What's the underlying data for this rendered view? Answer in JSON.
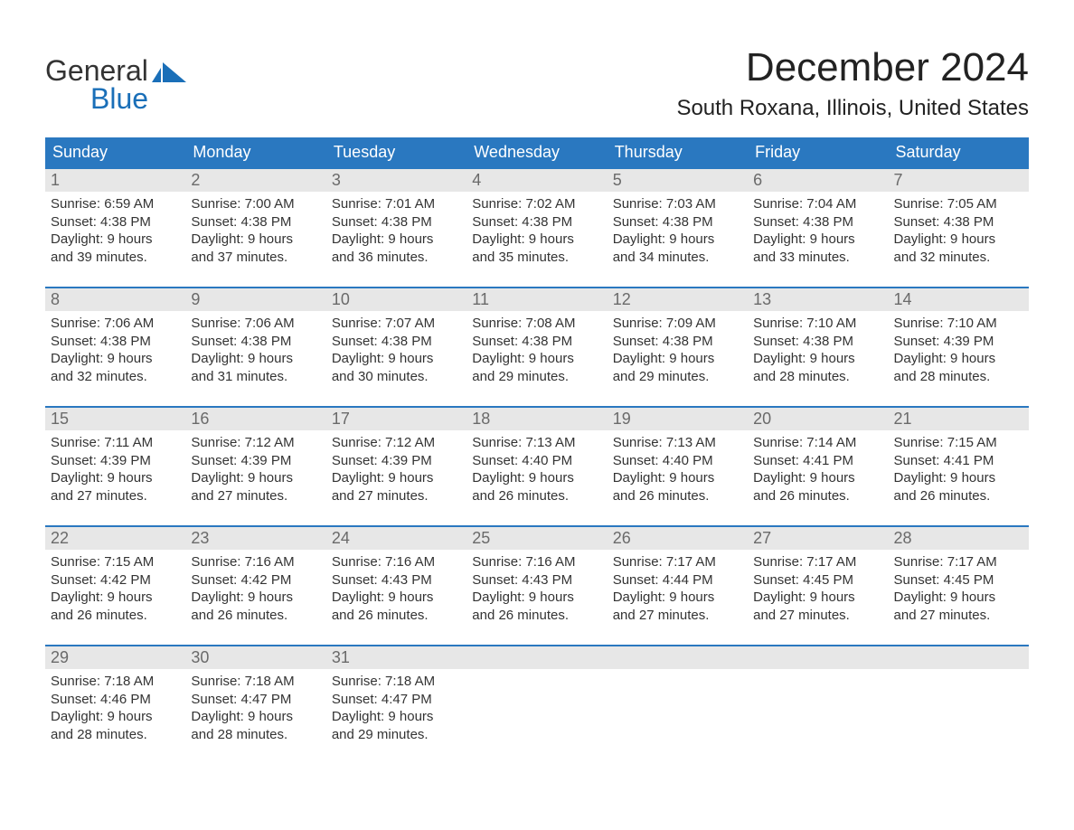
{
  "brand": {
    "word1": "General",
    "word2": "Blue",
    "accent_color": "#1a6fb8"
  },
  "title": "December 2024",
  "location": "South Roxana, Illinois, United States",
  "colors": {
    "header_bg": "#2a78c0",
    "header_text": "#ffffff",
    "daynum_bg": "#e7e7e7",
    "daynum_text": "#6a6a6a",
    "week_border": "#2a78c0",
    "body_text": "#333333",
    "background": "#ffffff"
  },
  "typography": {
    "title_fontsize": 44,
    "location_fontsize": 24,
    "dow_fontsize": 18,
    "daynum_fontsize": 18,
    "body_fontsize": 15
  },
  "days_of_week": [
    "Sunday",
    "Monday",
    "Tuesday",
    "Wednesday",
    "Thursday",
    "Friday",
    "Saturday"
  ],
  "weeks": [
    [
      {
        "n": "1",
        "sunrise": "Sunrise: 6:59 AM",
        "sunset": "Sunset: 4:38 PM",
        "d1": "Daylight: 9 hours",
        "d2": "and 39 minutes."
      },
      {
        "n": "2",
        "sunrise": "Sunrise: 7:00 AM",
        "sunset": "Sunset: 4:38 PM",
        "d1": "Daylight: 9 hours",
        "d2": "and 37 minutes."
      },
      {
        "n": "3",
        "sunrise": "Sunrise: 7:01 AM",
        "sunset": "Sunset: 4:38 PM",
        "d1": "Daylight: 9 hours",
        "d2": "and 36 minutes."
      },
      {
        "n": "4",
        "sunrise": "Sunrise: 7:02 AM",
        "sunset": "Sunset: 4:38 PM",
        "d1": "Daylight: 9 hours",
        "d2": "and 35 minutes."
      },
      {
        "n": "5",
        "sunrise": "Sunrise: 7:03 AM",
        "sunset": "Sunset: 4:38 PM",
        "d1": "Daylight: 9 hours",
        "d2": "and 34 minutes."
      },
      {
        "n": "6",
        "sunrise": "Sunrise: 7:04 AM",
        "sunset": "Sunset: 4:38 PM",
        "d1": "Daylight: 9 hours",
        "d2": "and 33 minutes."
      },
      {
        "n": "7",
        "sunrise": "Sunrise: 7:05 AM",
        "sunset": "Sunset: 4:38 PM",
        "d1": "Daylight: 9 hours",
        "d2": "and 32 minutes."
      }
    ],
    [
      {
        "n": "8",
        "sunrise": "Sunrise: 7:06 AM",
        "sunset": "Sunset: 4:38 PM",
        "d1": "Daylight: 9 hours",
        "d2": "and 32 minutes."
      },
      {
        "n": "9",
        "sunrise": "Sunrise: 7:06 AM",
        "sunset": "Sunset: 4:38 PM",
        "d1": "Daylight: 9 hours",
        "d2": "and 31 minutes."
      },
      {
        "n": "10",
        "sunrise": "Sunrise: 7:07 AM",
        "sunset": "Sunset: 4:38 PM",
        "d1": "Daylight: 9 hours",
        "d2": "and 30 minutes."
      },
      {
        "n": "11",
        "sunrise": "Sunrise: 7:08 AM",
        "sunset": "Sunset: 4:38 PM",
        "d1": "Daylight: 9 hours",
        "d2": "and 29 minutes."
      },
      {
        "n": "12",
        "sunrise": "Sunrise: 7:09 AM",
        "sunset": "Sunset: 4:38 PM",
        "d1": "Daylight: 9 hours",
        "d2": "and 29 minutes."
      },
      {
        "n": "13",
        "sunrise": "Sunrise: 7:10 AM",
        "sunset": "Sunset: 4:38 PM",
        "d1": "Daylight: 9 hours",
        "d2": "and 28 minutes."
      },
      {
        "n": "14",
        "sunrise": "Sunrise: 7:10 AM",
        "sunset": "Sunset: 4:39 PM",
        "d1": "Daylight: 9 hours",
        "d2": "and 28 minutes."
      }
    ],
    [
      {
        "n": "15",
        "sunrise": "Sunrise: 7:11 AM",
        "sunset": "Sunset: 4:39 PM",
        "d1": "Daylight: 9 hours",
        "d2": "and 27 minutes."
      },
      {
        "n": "16",
        "sunrise": "Sunrise: 7:12 AM",
        "sunset": "Sunset: 4:39 PM",
        "d1": "Daylight: 9 hours",
        "d2": "and 27 minutes."
      },
      {
        "n": "17",
        "sunrise": "Sunrise: 7:12 AM",
        "sunset": "Sunset: 4:39 PM",
        "d1": "Daylight: 9 hours",
        "d2": "and 27 minutes."
      },
      {
        "n": "18",
        "sunrise": "Sunrise: 7:13 AM",
        "sunset": "Sunset: 4:40 PM",
        "d1": "Daylight: 9 hours",
        "d2": "and 26 minutes."
      },
      {
        "n": "19",
        "sunrise": "Sunrise: 7:13 AM",
        "sunset": "Sunset: 4:40 PM",
        "d1": "Daylight: 9 hours",
        "d2": "and 26 minutes."
      },
      {
        "n": "20",
        "sunrise": "Sunrise: 7:14 AM",
        "sunset": "Sunset: 4:41 PM",
        "d1": "Daylight: 9 hours",
        "d2": "and 26 minutes."
      },
      {
        "n": "21",
        "sunrise": "Sunrise: 7:15 AM",
        "sunset": "Sunset: 4:41 PM",
        "d1": "Daylight: 9 hours",
        "d2": "and 26 minutes."
      }
    ],
    [
      {
        "n": "22",
        "sunrise": "Sunrise: 7:15 AM",
        "sunset": "Sunset: 4:42 PM",
        "d1": "Daylight: 9 hours",
        "d2": "and 26 minutes."
      },
      {
        "n": "23",
        "sunrise": "Sunrise: 7:16 AM",
        "sunset": "Sunset: 4:42 PM",
        "d1": "Daylight: 9 hours",
        "d2": "and 26 minutes."
      },
      {
        "n": "24",
        "sunrise": "Sunrise: 7:16 AM",
        "sunset": "Sunset: 4:43 PM",
        "d1": "Daylight: 9 hours",
        "d2": "and 26 minutes."
      },
      {
        "n": "25",
        "sunrise": "Sunrise: 7:16 AM",
        "sunset": "Sunset: 4:43 PM",
        "d1": "Daylight: 9 hours",
        "d2": "and 26 minutes."
      },
      {
        "n": "26",
        "sunrise": "Sunrise: 7:17 AM",
        "sunset": "Sunset: 4:44 PM",
        "d1": "Daylight: 9 hours",
        "d2": "and 27 minutes."
      },
      {
        "n": "27",
        "sunrise": "Sunrise: 7:17 AM",
        "sunset": "Sunset: 4:45 PM",
        "d1": "Daylight: 9 hours",
        "d2": "and 27 minutes."
      },
      {
        "n": "28",
        "sunrise": "Sunrise: 7:17 AM",
        "sunset": "Sunset: 4:45 PM",
        "d1": "Daylight: 9 hours",
        "d2": "and 27 minutes."
      }
    ],
    [
      {
        "n": "29",
        "sunrise": "Sunrise: 7:18 AM",
        "sunset": "Sunset: 4:46 PM",
        "d1": "Daylight: 9 hours",
        "d2": "and 28 minutes."
      },
      {
        "n": "30",
        "sunrise": "Sunrise: 7:18 AM",
        "sunset": "Sunset: 4:47 PM",
        "d1": "Daylight: 9 hours",
        "d2": "and 28 minutes."
      },
      {
        "n": "31",
        "sunrise": "Sunrise: 7:18 AM",
        "sunset": "Sunset: 4:47 PM",
        "d1": "Daylight: 9 hours",
        "d2": "and 29 minutes."
      },
      null,
      null,
      null,
      null
    ]
  ]
}
